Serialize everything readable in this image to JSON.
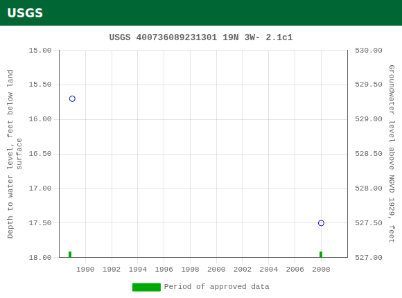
{
  "chart_data": {
    "type": "scatter",
    "title": "USGS 400736089231301 19N 3W- 2.1c1",
    "annotations": [
      {
        "text": "USGS",
        "color": "#006633"
      }
    ],
    "y_label": "Depth to water level, feet below land\nsurface",
    "y2_label": "Groundwater level above NGVD 1929, feet",
    "xlim": [
      1988.0,
      2010.0
    ],
    "xticks": [
      1990,
      1992,
      1994,
      1996,
      1998,
      2000,
      2002,
      2004,
      2006,
      2008
    ],
    "ylim": [
      18.0,
      15.0
    ],
    "yticks": [
      {
        "value": 15.0,
        "label": "15.00"
      },
      {
        "value": 15.5,
        "label": "15.50"
      },
      {
        "value": 16.0,
        "label": "16.00"
      },
      {
        "value": 16.5,
        "label": "16.50"
      },
      {
        "value": 17.0,
        "label": "17.00"
      },
      {
        "value": 17.5,
        "label": "17.50"
      },
      {
        "value": 18.0,
        "label": "18.00"
      }
    ],
    "y2lim": [
      527.0,
      530.0
    ],
    "y2ticks": [
      {
        "value": 527.0,
        "label": "527.00"
      },
      {
        "value": 527.5,
        "label": "527.50"
      },
      {
        "value": 528.0,
        "label": "528.00"
      },
      {
        "value": 528.5,
        "label": "528.50"
      },
      {
        "value": 529.0,
        "label": "529.00"
      },
      {
        "value": 529.5,
        "label": "529.50"
      },
      {
        "value": 530.0,
        "label": "530.00"
      }
    ],
    "grid": true,
    "legend": "bottom",
    "series": [
      {
        "color": "#0000cc",
        "marker": "open_circle",
        "x": [
          1989.0,
          2008.0
        ],
        "values": [
          15.7,
          17.5
        ]
      },
      {
        "name": "Period of approved data",
        "color": "#00aa00",
        "marker": "bar",
        "x": [
          1988.8,
          2008.0
        ],
        "values": [
          18.0,
          18.0
        ]
      }
    ]
  }
}
